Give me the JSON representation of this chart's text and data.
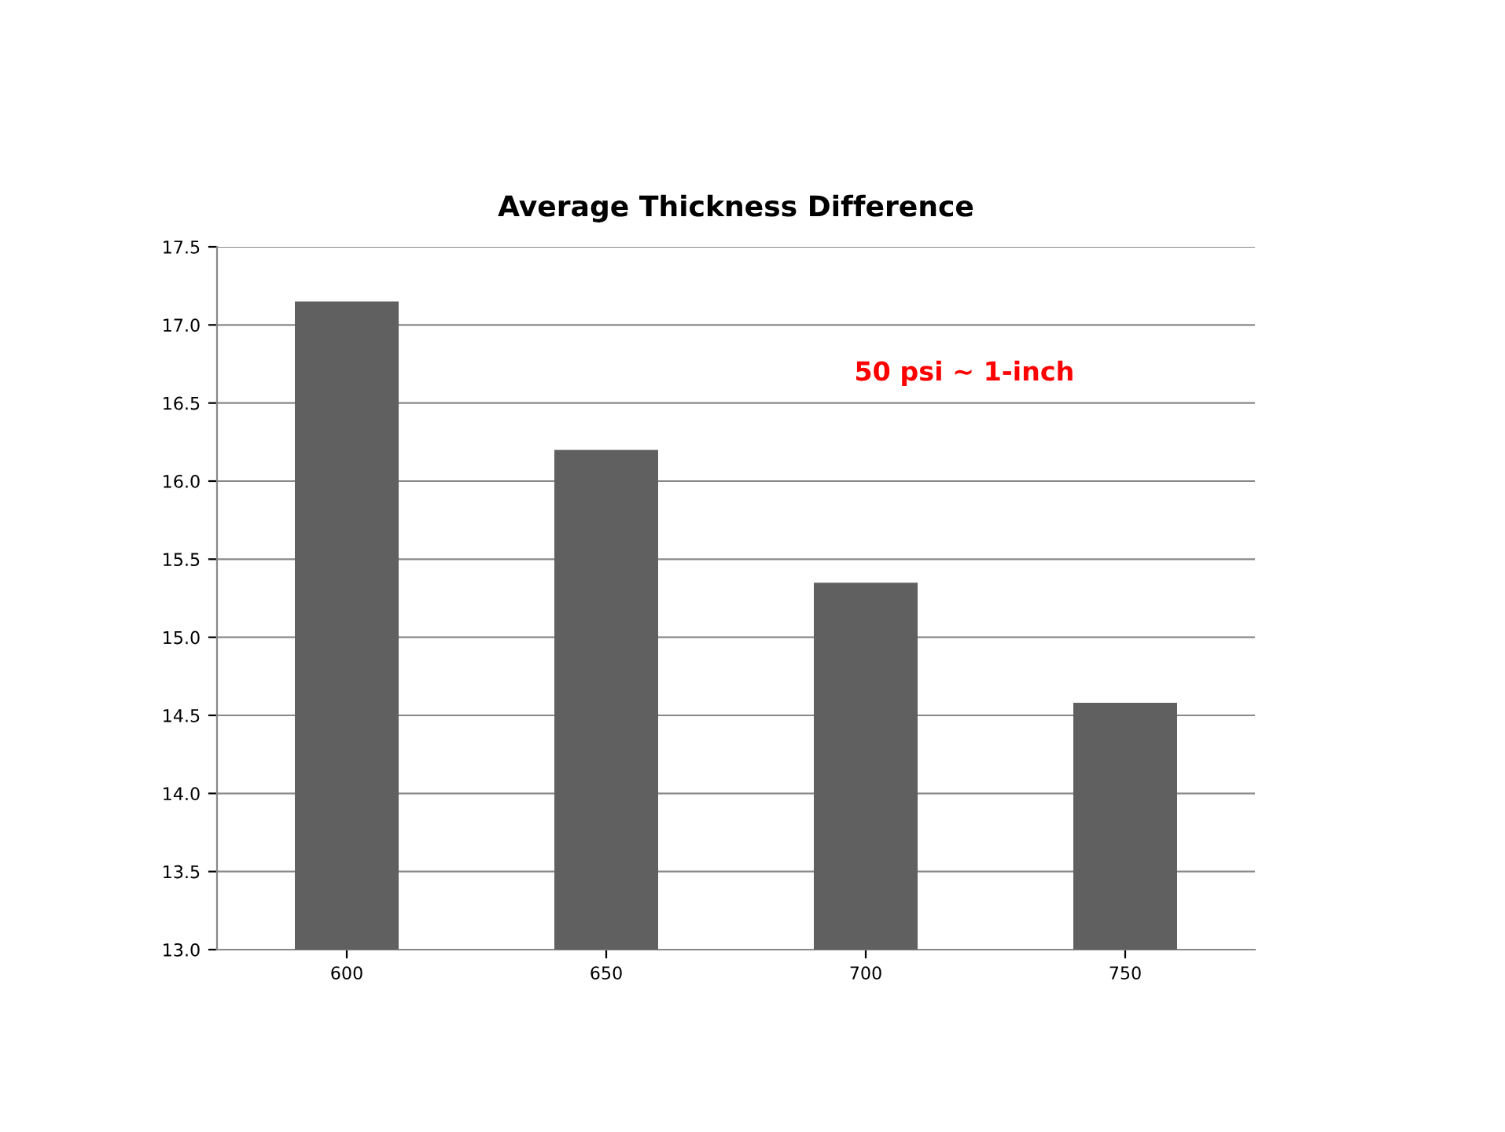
{
  "chart_data": {
    "type": "bar",
    "title": "Average Thickness Difference",
    "categories": [
      "600",
      "650",
      "700",
      "750"
    ],
    "values": [
      17.15,
      16.2,
      15.35,
      14.58
    ],
    "color": "#606060",
    "ylim": [
      13.0,
      17.5
    ],
    "yticks": [
      {
        "value": 13.0,
        "label": "13.0"
      },
      {
        "value": 13.5,
        "label": "13.5"
      },
      {
        "value": 14.0,
        "label": "14.0"
      },
      {
        "value": 14.5,
        "label": "14.5"
      },
      {
        "value": 15.0,
        "label": "15.0"
      },
      {
        "value": 15.5,
        "label": "15.5"
      },
      {
        "value": 16.0,
        "label": "16.0"
      },
      {
        "value": 16.5,
        "label": "16.5"
      },
      {
        "value": 17.0,
        "label": "17.0"
      },
      {
        "value": 17.5,
        "label": "17.5"
      }
    ],
    "grid": "y",
    "annotations": [
      "50 psi ~ 1-inch"
    ]
  }
}
